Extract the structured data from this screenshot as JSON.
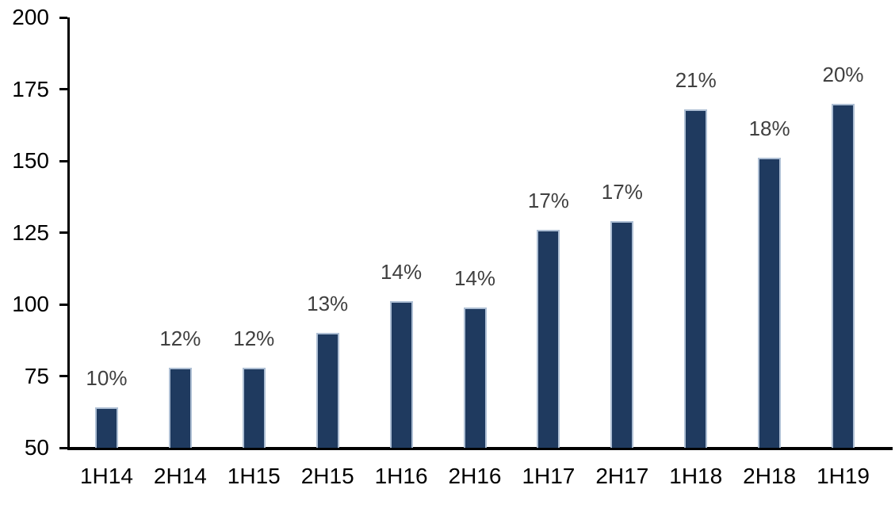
{
  "chart_data": {
    "type": "bar",
    "title": "",
    "xlabel": "",
    "ylabel": "",
    "categories": [
      "1H14",
      "2H14",
      "1H15",
      "2H15",
      "1H16",
      "2H16",
      "1H17",
      "2H17",
      "1H18",
      "2H18",
      "1H19"
    ],
    "values": [
      64,
      78,
      78,
      90,
      101,
      99,
      126,
      129,
      168,
      151,
      170
    ],
    "data_labels": [
      "10%",
      "12%",
      "12%",
      "13%",
      "14%",
      "14%",
      "17%",
      "17%",
      "21%",
      "18%",
      "20%"
    ],
    "ylim": [
      50,
      200
    ],
    "yticks": [
      50,
      75,
      100,
      125,
      150,
      175,
      200
    ],
    "grid": false,
    "legend": false,
    "colors": {
      "bar_fill": "#1F3A5F",
      "bar_border": "#AEBFD4",
      "data_label": "#404040",
      "axis_text": "#000000",
      "axis_line": "#000000",
      "background": "#FFFFFF"
    }
  }
}
